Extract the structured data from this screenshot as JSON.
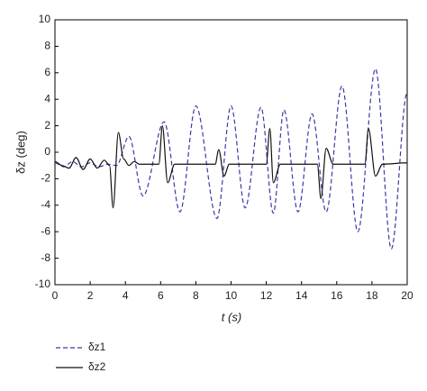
{
  "chart_data": {
    "type": "line",
    "x_label": "t (s)",
    "y_label": "δz (deg)",
    "xlim": [
      0,
      20
    ],
    "xticks": [
      0,
      2,
      4,
      6,
      8,
      10,
      12,
      14,
      16,
      18,
      20
    ],
    "ylim": [
      -10,
      10
    ],
    "yticks": [
      -10,
      -8,
      -6,
      -4,
      -2,
      0,
      2,
      4,
      6,
      8,
      10
    ],
    "grid": false,
    "legend": "below-left",
    "series": [
      {
        "name": "δz1",
        "color": "#3a3aa8",
        "style": "dashed",
        "x": [
          0,
          0.5,
          1,
          1.5,
          2,
          2.5,
          3,
          3.5,
          4.2,
          5.0,
          6.2,
          7.1,
          8.0,
          9.2,
          10.0,
          10.8,
          11.7,
          12.4,
          13.0,
          13.8,
          14.6,
          15.4,
          16.3,
          17.2,
          18.2,
          19.1,
          20
        ],
        "values": [
          -0.8,
          -1.1,
          -0.7,
          -1.1,
          -0.8,
          -1.1,
          -0.9,
          -1.0,
          1.2,
          -3.3,
          2.3,
          -4.5,
          3.5,
          -5.0,
          3.5,
          -4.2,
          3.4,
          -4.6,
          3.2,
          -4.5,
          2.9,
          -4.5,
          5.0,
          -6.0,
          6.3,
          -7.3,
          4.5
        ]
      },
      {
        "name": "δz2",
        "color": "#111111",
        "style": "solid",
        "x": [
          0,
          0.4,
          0.8,
          1.2,
          1.6,
          2.0,
          2.4,
          2.8,
          3.1,
          3.3,
          3.6,
          3.9,
          4.2,
          4.5,
          4.8,
          5.9,
          6.1,
          6.4,
          6.8,
          9.1,
          9.3,
          9.6,
          9.9,
          12.0,
          12.2,
          12.4,
          12.8,
          14.9,
          15.1,
          15.4,
          15.8,
          17.6,
          17.8,
          18.2,
          18.6,
          20
        ],
        "values": [
          -0.7,
          -1.0,
          -1.2,
          -0.4,
          -1.3,
          -0.5,
          -1.2,
          -0.6,
          -1.0,
          -4.2,
          1.5,
          -0.5,
          -1.0,
          -0.7,
          -0.9,
          -0.9,
          2.0,
          -2.3,
          -0.9,
          -0.9,
          0.2,
          -1.8,
          -0.9,
          -0.9,
          1.8,
          -2.3,
          -0.9,
          -0.9,
          -3.5,
          0.3,
          -0.9,
          -0.9,
          1.8,
          -1.8,
          -0.9,
          -0.8
        ]
      }
    ]
  }
}
